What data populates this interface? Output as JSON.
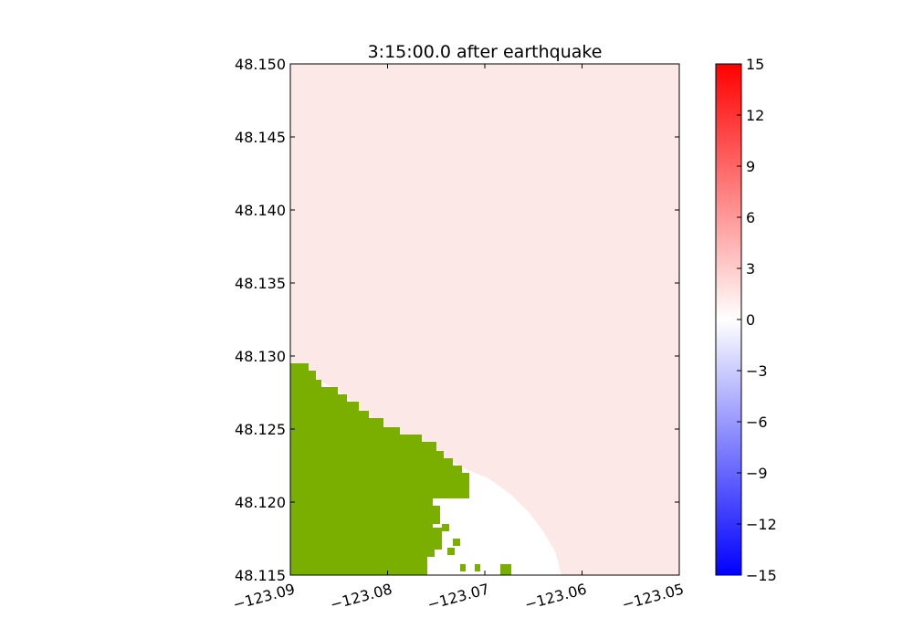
{
  "chart_data": {
    "type": "heatmap",
    "title": "3:15:00.0 after earthquake",
    "xlabel": "",
    "ylabel": "",
    "x_ticks": [
      "−123.09",
      "−123.08",
      "−123.07",
      "−123.06",
      "−123.05"
    ],
    "x_tick_values": [
      -123.09,
      -123.08,
      -123.07,
      -123.06,
      -123.05
    ],
    "xlim": [
      -123.09,
      -123.05
    ],
    "y_ticks": [
      "48.115",
      "48.120",
      "48.125",
      "48.130",
      "48.135",
      "48.140",
      "48.145",
      "48.150"
    ],
    "y_tick_values": [
      48.115,
      48.12,
      48.125,
      48.13,
      48.135,
      48.14,
      48.145,
      48.15
    ],
    "ylim": [
      48.115,
      48.15
    ],
    "colorbar": {
      "ticks": [
        "15",
        "12",
        "9",
        "6",
        "3",
        "0",
        "−3",
        "−6",
        "−9",
        "−12",
        "−15"
      ],
      "tick_values": [
        15,
        12,
        9,
        6,
        3,
        0,
        -3,
        -6,
        -9,
        -12,
        -15
      ],
      "range": [
        -15,
        15
      ],
      "colormap": "bwr",
      "color_max": "#ff0000",
      "color_mid": "#ffffff",
      "color_min": "#0000ff"
    },
    "field_color": "#fde8e8",
    "land_color": "#7aaf00",
    "grid": false
  }
}
